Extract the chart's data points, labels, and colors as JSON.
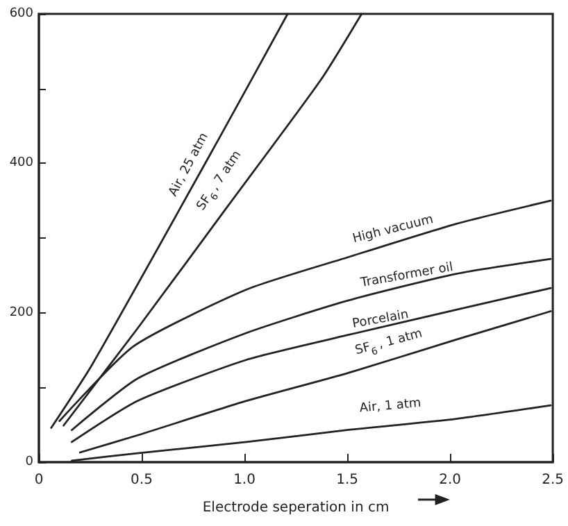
{
  "chart_data": {
    "type": "line",
    "xlabel": "Electrode seperation in cm",
    "xlim": [
      0,
      2.5
    ],
    "xticks": [
      0,
      0.5,
      {
        "value": 1,
        "label": "1.0"
      },
      1.5,
      {
        "value": 2,
        "label": "2.0"
      },
      2.5
    ],
    "ylim": [
      0,
      600
    ],
    "yticks": [
      0,
      {
        "value": 100,
        "label": null
      },
      200,
      {
        "value": 300,
        "label": null
      },
      400,
      {
        "value": 500,
        "label": null
      },
      600
    ],
    "grid": false,
    "legend": false,
    "marker": "none",
    "line_style": "solid",
    "series": [
      {
        "name": "Air, 25 atm",
        "color": "#222222",
        "x": [
          0.06,
          0.26,
          0.88,
          1.21
        ],
        "values": [
          46,
          131,
          435,
          600
        ]
      },
      {
        "name": "SF$_{6}$, 7 atm",
        "color": "#222222",
        "x": [
          0.12,
          0.48,
          0.92,
          1.37,
          1.57
        ],
        "values": [
          49,
          179,
          343,
          511,
          600
        ]
      },
      {
        "name": "High vacuum",
        "color": "#222222",
        "x": [
          0.1,
          0.46,
          1.01,
          1.5,
          2.03,
          2.49
        ],
        "values": [
          55,
          155,
          231,
          274,
          319,
          350
        ]
      },
      {
        "name": "Transformer oil",
        "color": "#222222",
        "x": [
          0.16,
          0.48,
          1.01,
          1.5,
          2.03,
          2.49
        ],
        "values": [
          43,
          112,
          173,
          216,
          252,
          272
        ]
      },
      {
        "name": "Porcelain",
        "color": "#222222",
        "x": [
          0.16,
          0.48,
          1.01,
          1.5,
          2.03,
          2.49
        ],
        "values": [
          27,
          82,
          137,
          170,
          204,
          233
        ]
      },
      {
        "name": "SF$_{6}$, 1 atm",
        "color": "#222222",
        "x": [
          0.2,
          0.48,
          1.01,
          1.5,
          2.03,
          2.49
        ],
        "values": [
          13,
          36,
          82,
          119,
          164,
          202
        ]
      },
      {
        "name": "Air, 1 atm",
        "color": "#222222",
        "x": [
          0.16,
          0.48,
          1.01,
          1.5,
          2.03,
          2.49
        ],
        "values": [
          2,
          12,
          27,
          43,
          58,
          76
        ]
      }
    ]
  }
}
